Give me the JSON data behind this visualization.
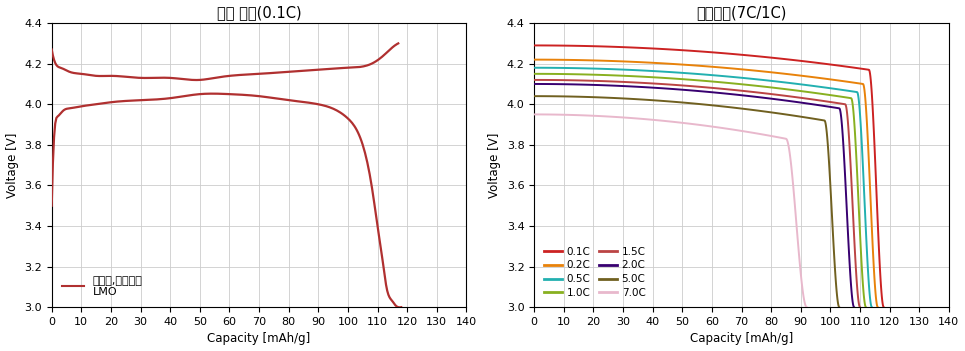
{
  "left_title": "초기 용량(0.1C)",
  "right_title": "출력특성(7C/1C)",
  "xlabel": "Capacity [mAh/g]",
  "ylabel": "Voltage [V]",
  "xlim": [
    0,
    140
  ],
  "ylim": [
    3.0,
    4.4
  ],
  "xticks": [
    0,
    10,
    20,
    30,
    40,
    50,
    60,
    70,
    80,
    90,
    100,
    110,
    120,
    130,
    140
  ],
  "yticks": [
    3.0,
    3.2,
    3.4,
    3.6,
    3.8,
    4.0,
    4.2,
    4.4
  ],
  "left_line_color": "#b03030",
  "left_legend_label1": "고용량,고안정성",
  "left_legend_label2": "LMO",
  "rate_colors": {
    "0.1C": "#cc2222",
    "0.2C": "#e8820a",
    "0.5C": "#22b0b0",
    "1.0C": "#88b020",
    "1.5C": "#bb4444",
    "2.0C": "#380070",
    "5.0C": "#706020",
    "7.0C": "#e8b8cc"
  },
  "background_color": "#ffffff",
  "grid_color": "#cccccc"
}
